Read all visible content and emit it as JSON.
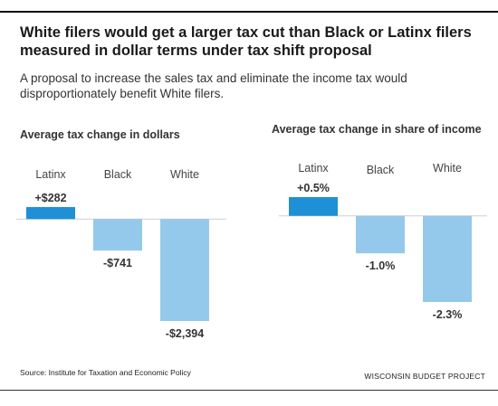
{
  "title": "White filers would get a larger tax cut than Black or Latinx filers measured in dollar terms under tax shift proposal",
  "subtitle": "A proposal to increase the sales tax and eliminate the income tax would disproportionately benefit White filers.",
  "source": "Source: Institute for Taxation and Economic Policy",
  "credit": "WISCONSIN BUDGET PROJECT",
  "colors": {
    "positive": "#1f8fd6",
    "negative": "#95c9ec"
  },
  "chart_data": [
    {
      "type": "bar",
      "title": "Average tax change in dollars",
      "categories": [
        "Latinx",
        "Black",
        "White"
      ],
      "values": [
        282,
        -741,
        -2394
      ],
      "value_labels": [
        "+$282",
        "-$741",
        "-$2,394"
      ],
      "ylim": [
        -2394,
        282
      ]
    },
    {
      "type": "bar",
      "title": "Average tax change in share of income",
      "categories": [
        "Latinx",
        "Black",
        "White"
      ],
      "values": [
        0.5,
        -1.0,
        -2.3
      ],
      "value_labels": [
        "+0.5%",
        "-1.0%",
        "-2.3%"
      ],
      "ylim": [
        -2.3,
        0.5
      ]
    }
  ]
}
